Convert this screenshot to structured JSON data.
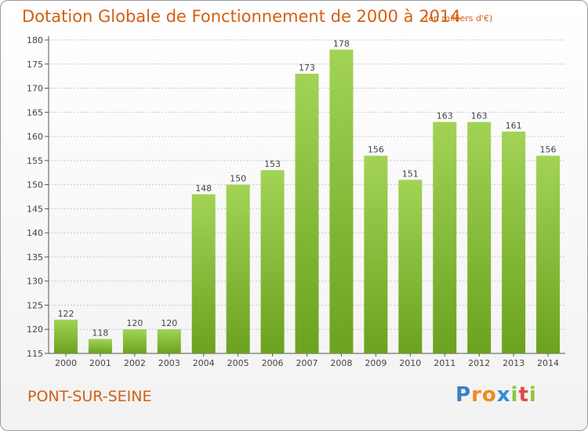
{
  "header": {
    "title": "Dotation Globale de Fonctionnement de 2000 à 2014",
    "subtitle": "(en milliers d'€)"
  },
  "footer": {
    "commune": "PONT-SUR-SEINE",
    "logo_letters": [
      "P",
      "r",
      "o",
      "x",
      "i",
      "t",
      "i"
    ]
  },
  "colors": {
    "bar_light": "#a2d356",
    "bar_dark": "#6ba21f",
    "title": "#d25f14",
    "axis": "#555555",
    "grid": "#c8c8c8"
  },
  "chart_data": {
    "type": "bar",
    "title": "Dotation Globale de Fonctionnement de 2000 à 2014",
    "subtitle": "(en milliers d'€)",
    "xlabel": "",
    "ylabel": "",
    "categories": [
      "2000",
      "2001",
      "2002",
      "2003",
      "2004",
      "2005",
      "2006",
      "2007",
      "2008",
      "2009",
      "2010",
      "2011",
      "2012",
      "2013",
      "2014"
    ],
    "values": [
      122,
      118,
      120,
      120,
      148,
      150,
      153,
      173,
      178,
      156,
      151,
      163,
      163,
      161,
      156
    ],
    "ylim": [
      115,
      180
    ],
    "yticks": [
      115,
      120,
      125,
      130,
      135,
      140,
      145,
      150,
      155,
      160,
      165,
      170,
      175,
      180
    ],
    "grid": true,
    "data_labels": true
  }
}
